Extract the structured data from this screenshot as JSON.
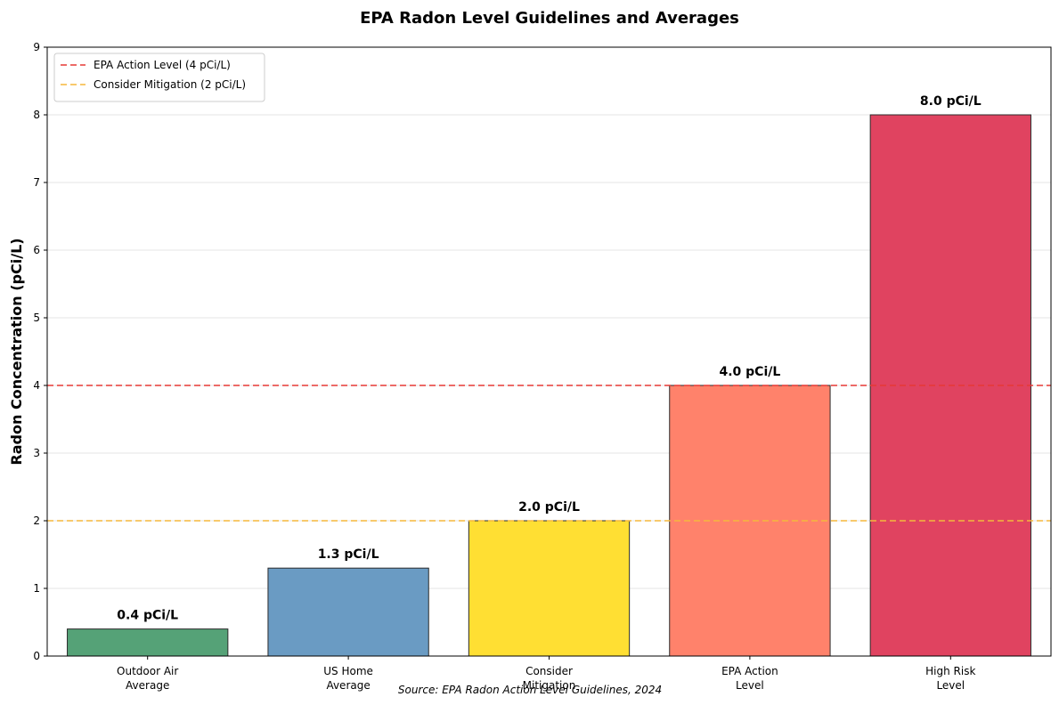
{
  "chart_data": {
    "type": "bar",
    "title": "EPA Radon Level Guidelines and Averages",
    "xlabel": "",
    "ylabel": "Radon Concentration (pCi/L)",
    "ylim": [
      0,
      9
    ],
    "yticks": [
      0,
      1,
      2,
      3,
      4,
      5,
      6,
      7,
      8,
      9
    ],
    "grid": "y",
    "categories": [
      [
        "Outdoor Air",
        "Average"
      ],
      [
        "US Home",
        "Average"
      ],
      [
        "Consider",
        "Mitigation"
      ],
      [
        "EPA Action",
        "Level"
      ],
      [
        "High Risk",
        "Level"
      ]
    ],
    "values": [
      0.4,
      1.3,
      2.0,
      4.0,
      8.0
    ],
    "data_labels": [
      "0.4 pCi/L",
      "1.3 pCi/L",
      "2.0 pCi/L",
      "4.0 pCi/L",
      "8.0 pCi/L"
    ],
    "colors": [
      "#55a277",
      "#6a9bc3",
      "#ffdf33",
      "#ff826b",
      "#e04360"
    ],
    "reference_lines": [
      {
        "name": "EPA Action Level (4 pCi/L)",
        "value": 4,
        "color": "#e53935"
      },
      {
        "name": "Consider Mitigation (2 pCi/L)",
        "value": 2,
        "color": "#f6b73c"
      }
    ],
    "legend_position": "top-left",
    "source": "Source: EPA Radon Action Level Guidelines, 2024"
  }
}
